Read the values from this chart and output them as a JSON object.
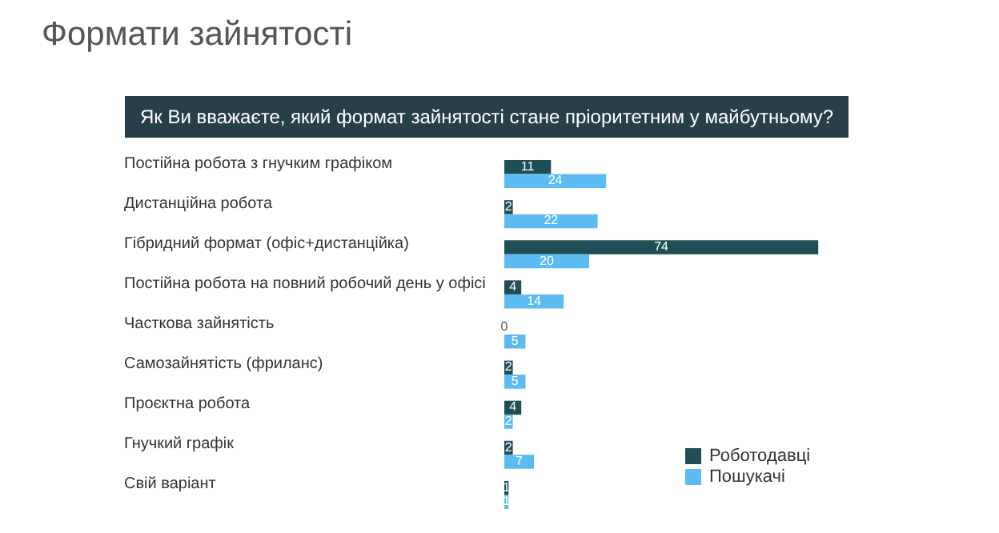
{
  "chart_data": {
    "type": "bar",
    "orientation": "horizontal",
    "title": "Формати зайнятості",
    "subtitle": "Як Ви вважаєте, який формат зайнятості стане пріоритетним у майбутньому?",
    "categories": [
      "Постійна робота з гнучким графіком",
      "Дистанційна робота",
      "Гібридний формат (офіс+дистанційка)",
      "Постійна робота на повний робочий день у офісі",
      "Часткова зайнятість",
      "Самозайнятість (фриланс)",
      "Проєктна робота",
      "Гнучкий графік",
      "Свій варіант"
    ],
    "series": [
      {
        "name": "Роботодавці",
        "color": "#1f4f55",
        "values": [
          11,
          2,
          74,
          4,
          0,
          2,
          4,
          2,
          1
        ]
      },
      {
        "name": "Пошукачі",
        "color": "#5cbcf2",
        "values": [
          24,
          22,
          20,
          14,
          5,
          5,
          2,
          7,
          1
        ]
      }
    ],
    "data_labels": true,
    "legend": "bottom right"
  }
}
